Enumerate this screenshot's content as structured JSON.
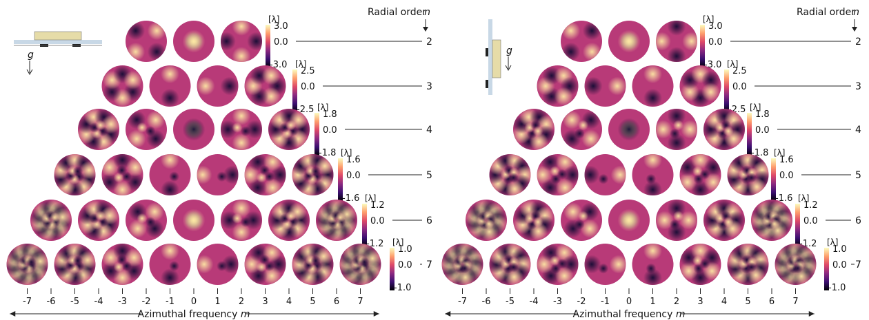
{
  "header": {
    "radial_order_label": "Radial order",
    "radial_order_symbol": "n",
    "gravity_symbol": "g",
    "unit_label": "[λ]"
  },
  "x_axis": {
    "label": "Azimuthal frequency",
    "symbol": "m",
    "ticks": [
      "-7",
      "-6",
      "-5",
      "-4",
      "-3",
      "-2",
      "-1",
      "0",
      "1",
      "2",
      "3",
      "4",
      "5",
      "6",
      "7"
    ]
  },
  "rows": [
    {
      "n": "2",
      "scale": [
        "3.0",
        "0.0",
        "-3.0"
      ],
      "m": [
        -2,
        0,
        2
      ]
    },
    {
      "n": "3",
      "scale": [
        "2.5",
        "0.0",
        "-2.5"
      ],
      "m": [
        -3,
        -1,
        1,
        3
      ]
    },
    {
      "n": "4",
      "scale": [
        "1.8",
        "0.0",
        "-1.8"
      ],
      "m": [
        -4,
        -2,
        0,
        2,
        4
      ]
    },
    {
      "n": "5",
      "scale": [
        "1.6",
        "0.0",
        "-1.6"
      ],
      "m": [
        -5,
        -3,
        -1,
        1,
        3,
        5
      ]
    },
    {
      "n": "6",
      "scale": [
        "1.2",
        "0.0",
        "-1.2"
      ],
      "m": [
        -6,
        -4,
        -2,
        0,
        2,
        4,
        6
      ]
    },
    {
      "n": "7",
      "scale": [
        "1.0",
        "0.0",
        "-1.0"
      ],
      "m": [
        -7,
        -5,
        -3,
        -1,
        1,
        3,
        5,
        7
      ]
    }
  ],
  "panels": [
    {
      "id": "left",
      "orientation": "horizontal"
    },
    {
      "id": "right",
      "orientation": "vertical"
    }
  ],
  "colormap": [
    "#000004",
    "#3b0f70",
    "#8c2981",
    "#de4968",
    "#fe9f6d",
    "#fcfdbf"
  ]
}
